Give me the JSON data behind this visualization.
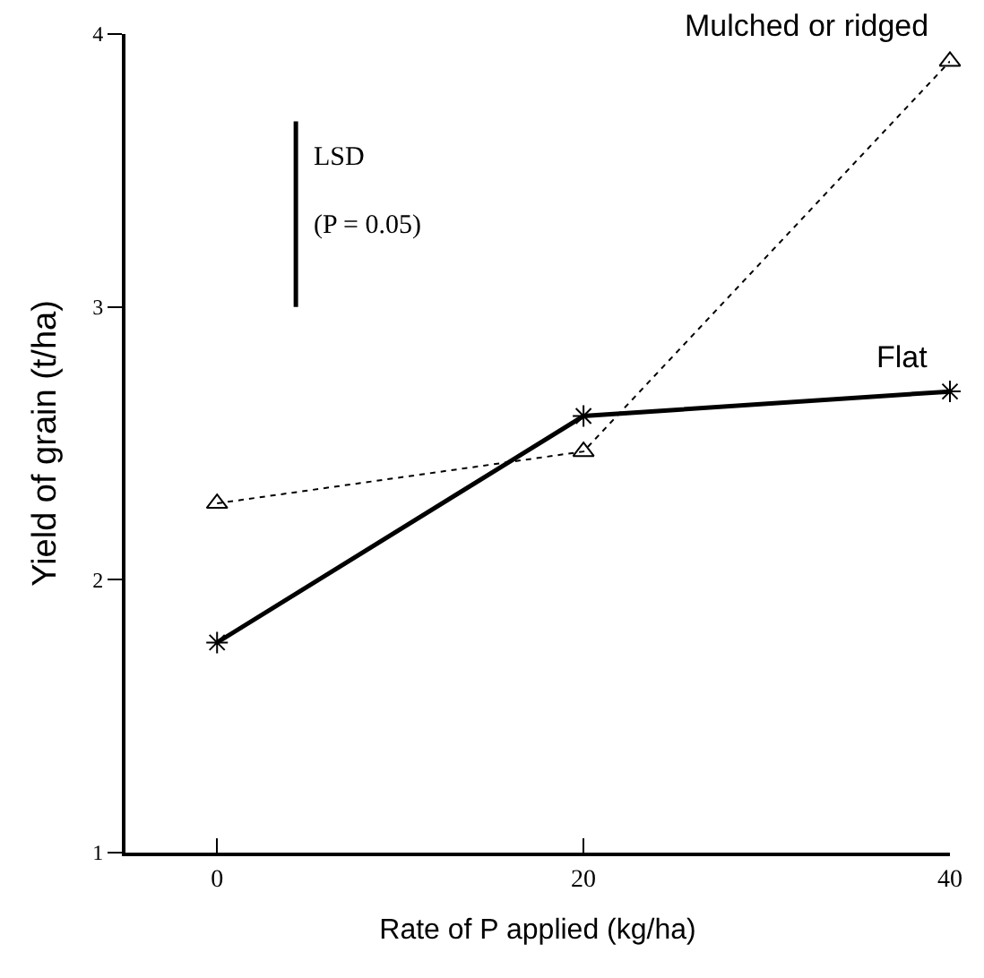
{
  "chart_data": {
    "type": "line",
    "xlabel": "Rate of P applied (kg/ha)",
    "ylabel": "Yield of grain (t/ha)",
    "x": [
      0,
      20,
      40
    ],
    "series": [
      {
        "name": "Flat",
        "color": "#000000",
        "values": [
          1.77,
          2.6,
          2.69
        ],
        "marker": "cross",
        "line_style": "solid"
      },
      {
        "name": "Mulched or ridged",
        "color": "#000000",
        "values": [
          2.28,
          2.47,
          3.9
        ],
        "marker": "triangle",
        "line_style": "dotted"
      },
      {
        "color": "#000000",
        "x": [
          4.3,
          4.3
        ],
        "values": [
          3.0,
          3.68
        ],
        "marker": "none",
        "line_style": "solid"
      }
    ],
    "annotations": [
      {
        "text": "LSD",
        "x": 4.3,
        "y": 3.55
      },
      {
        "text": "(P = 0.05)",
        "x": 4.3,
        "y": 3.3
      }
    ],
    "xlim": [
      -5,
      40
    ],
    "xticks": [
      0,
      20,
      40
    ],
    "ylim": [
      1,
      4
    ],
    "yticks": [
      1,
      2,
      3,
      4
    ]
  }
}
